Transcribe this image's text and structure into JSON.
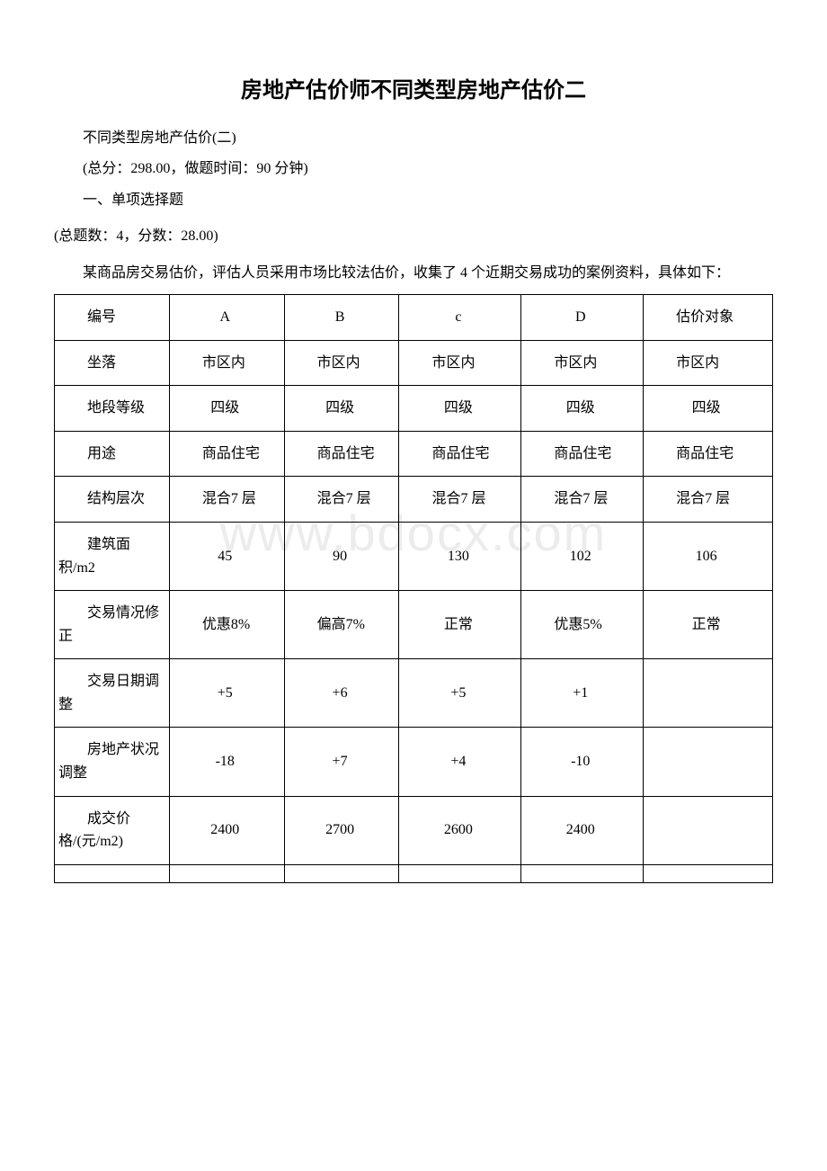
{
  "title": "房地产估价师不同类型房地产估价二",
  "subtitle": "不同类型房地产估价(二)",
  "scoreline": "(总分：298.00，做题时间：90 分钟)",
  "section": "一、单项选择题",
  "totalinfo": "(总题数：4，分数：28.00)",
  "intro": "某商品房交易估价，评估人员采用市场比较法估价，收集了 4 个近期交易成功的案例资料，具体如下：",
  "watermark": "www.bdocx.com",
  "table": {
    "columns": [
      "编号",
      "A",
      "B",
      "c",
      "D",
      "估价对象"
    ],
    "rows": [
      {
        "label": "坐落",
        "cells": [
          "市区内",
          "市区内",
          "市区内",
          "市区内",
          "市区内"
        ],
        "indent": true
      },
      {
        "label": "地段等级",
        "cells": [
          "四级",
          "四级",
          "四级",
          "四级",
          "四级"
        ],
        "indent": false
      },
      {
        "label": "用途",
        "cells": [
          "商品住宅",
          "商品住宅",
          "商品住宅",
          "商品住宅",
          "商品住宅"
        ],
        "indent": true
      },
      {
        "label": "结构层次",
        "cells": [
          "混合7 层",
          "混合7 层",
          "混合7 层",
          "混合7 层",
          "混合7 层"
        ],
        "indent": true
      },
      {
        "label": "建筑面积/m2",
        "cells": [
          "45",
          "90",
          "130",
          "102",
          "106"
        ],
        "indent": false
      },
      {
        "label": "交易情况修正",
        "cells": [
          "优惠8%",
          "偏高7%",
          "正常",
          "优惠5%",
          "正常"
        ],
        "indent": true
      },
      {
        "label": "交易日期调整",
        "cells": [
          "+5",
          "+6",
          "+5",
          "+1",
          ""
        ],
        "indent": false
      },
      {
        "label": "房地产状况调整",
        "cells": [
          "-18",
          "+7",
          "+4",
          "-10",
          ""
        ],
        "indent": false
      },
      {
        "label": "成交价格/(元/m2)",
        "cells": [
          "2400",
          "2700",
          "2600",
          "2400",
          ""
        ],
        "indent": false
      }
    ],
    "col_widths": [
      "16%",
      "16%",
      "16%",
      "17%",
      "17%",
      "18%"
    ]
  }
}
